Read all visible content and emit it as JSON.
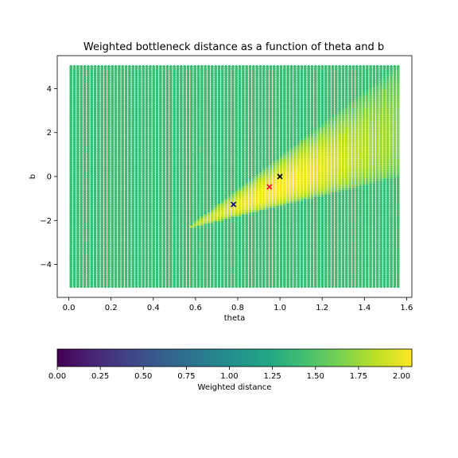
{
  "chart_data": {
    "type": "scatter",
    "title": "Weighted bottleneck distance as a function of theta and b",
    "xlabel": "theta",
    "ylabel": "b",
    "xlim": [
      -0.055,
      1.625
    ],
    "ylim": [
      -5.5,
      5.5
    ],
    "xticks": [
      0.0,
      0.2,
      0.4,
      0.6,
      0.8,
      1.0,
      1.2,
      1.4,
      1.6
    ],
    "xtick_labels": [
      "0.0",
      "0.2",
      "0.4",
      "0.6",
      "0.8",
      "1.0",
      "1.2",
      "1.4",
      "1.6"
    ],
    "yticks": [
      -4,
      -2,
      0,
      2,
      4
    ],
    "ytick_labels": [
      "−4",
      "−2",
      "0",
      "2",
      "4"
    ],
    "grid": {
      "theta_min": 0.01,
      "theta_max": 1.56,
      "theta_count": 96,
      "b_min": -5.0,
      "b_max": 5.0,
      "b_count": 100,
      "baseline_distance": 1.41,
      "high_region_peak": 2.06,
      "description": "Distance is ~1.41 everywhere except a wedge fanning out from about (0.55, -2.4) towards large theta, where it rises up to ~2.05 near theta≈1.0, b≈0."
    },
    "markers": [
      {
        "theta": 0.78,
        "b": -1.27,
        "color": "#00008b"
      },
      {
        "theta": 0.95,
        "b": -0.47,
        "color": "#ff0000"
      },
      {
        "theta": 1.0,
        "b": 0.0,
        "color": "#000000"
      }
    ],
    "colorbar": {
      "label": "Weighted distance",
      "range": [
        0.0,
        2.06
      ],
      "ticks": [
        0.0,
        0.25,
        0.5,
        0.75,
        1.0,
        1.25,
        1.5,
        1.75,
        2.0
      ],
      "tick_labels": [
        "0.00",
        "0.25",
        "0.50",
        "0.75",
        "1.00",
        "1.25",
        "1.50",
        "1.75",
        "2.00"
      ],
      "colormap": "viridis"
    }
  }
}
